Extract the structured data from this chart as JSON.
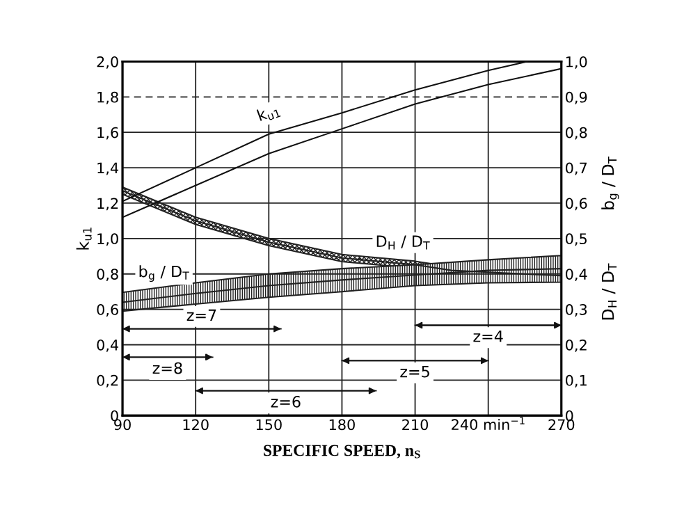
{
  "chart_data": {
    "type": "line",
    "xlabel": "SPECIFIC SPEED, n$_{S}$",
    "ylabel": "k$_{u1}$",
    "y2label": "D$_{H}$ / D$_{T}$          b$_{g}$ / D$_{T}$",
    "xlim": [
      90,
      270
    ],
    "xticks": [
      90,
      120,
      150,
      180,
      210,
      {
        "value": 240,
        "label": "240 min$^{−1}$"
      },
      270
    ],
    "ylim": [
      0,
      2.0
    ],
    "yticks": [
      0,
      {
        "value": 0.2,
        "label": "0,2"
      },
      {
        "value": 0.4,
        "label": "0,4"
      },
      {
        "value": 0.6,
        "label": "0,6"
      },
      {
        "value": 0.8,
        "label": "0,8"
      },
      {
        "value": 1.0,
        "label": "1,0"
      },
      {
        "value": 1.2,
        "label": "1,2"
      },
      {
        "value": 1.4,
        "label": "1,4"
      },
      {
        "value": 1.6,
        "label": "1,6"
      },
      {
        "value": 1.8,
        "label": "1,8"
      },
      {
        "value": 2.0,
        "label": "2,0"
      }
    ],
    "y2lim": [
      0,
      1.0
    ],
    "y2ticks": [
      0,
      {
        "value": 0.1,
        "label": "0,1"
      },
      {
        "value": 0.2,
        "label": "0,2"
      },
      {
        "value": 0.3,
        "label": "0,3"
      },
      {
        "value": 0.4,
        "label": "0,4"
      },
      {
        "value": 0.5,
        "label": "0,5"
      },
      {
        "value": 0.6,
        "label": "0,6"
      },
      {
        "value": 0.7,
        "label": "0,7"
      },
      {
        "value": 0.8,
        "label": "0,8"
      },
      {
        "value": 0.9,
        "label": "0,9"
      },
      {
        "value": 1.0,
        "label": "1,0"
      }
    ],
    "grid": true,
    "legend": false,
    "marker": "none",
    "line_style": "solid",
    "ref_lines": [
      {
        "axis": "y",
        "value": 1.8,
        "color": "#222222",
        "line_style": "dashed"
      }
    ],
    "series": [
      {
        "name": "k$_{u1}$",
        "color": "#111111",
        "x": [
          90,
          120,
          150,
          180,
          210,
          240,
          256
        ],
        "values": [
          1.21,
          1.4,
          1.59,
          1.71,
          1.84,
          1.95,
          2.0
        ]
      },
      {
        "color": "#111111",
        "x": [
          90,
          120,
          150,
          180,
          210,
          240,
          270
        ],
        "values": [
          1.12,
          1.3,
          1.48,
          1.62,
          1.76,
          1.87,
          1.96
        ]
      },
      {
        "name": "D$_{H}$ / D$_{T}$",
        "color": "#222222",
        "axis": "y2",
        "x": [
          90,
          120,
          150,
          180,
          210,
          225,
          240,
          270
        ],
        "values": [
          0.635,
          0.55,
          0.49,
          0.445,
          0.426,
          0.41,
          0.405,
          0.395
        ],
        "lower": [
          0.625,
          0.54,
          0.48,
          0.435,
          0.416,
          0.4,
          0.395,
          0.38
        ],
        "upper": [
          0.645,
          0.56,
          0.5,
          0.455,
          0.436,
          0.42,
          0.415,
          0.41
        ]
      },
      {
        "name": "b$_{g}$ / D$_{T}$",
        "color": "#222222",
        "axis": "y2",
        "x": [
          90,
          120,
          150,
          180,
          210,
          240,
          270
        ],
        "values": [
          0.32,
          0.345,
          0.367,
          0.383,
          0.397,
          0.41,
          0.415
        ],
        "lower": [
          0.295,
          0.315,
          0.334,
          0.35,
          0.367,
          0.375,
          0.377
        ],
        "upper": [
          0.348,
          0.375,
          0.4,
          0.415,
          0.426,
          0.44,
          0.452
        ]
      },
      {
        "name": "z=7",
        "color": "#111111",
        "x": [
          90,
          155
        ],
        "values": [
          0.49,
          0.49
        ]
      },
      {
        "name": "z=8",
        "color": "#111111",
        "x": [
          90,
          127
        ],
        "values": [
          0.33,
          0.33
        ]
      },
      {
        "name": "z=6",
        "color": "#111111",
        "x": [
          120,
          194
        ],
        "values": [
          0.14,
          0.14
        ]
      },
      {
        "name": "z=5",
        "color": "#111111",
        "x": [
          180,
          240
        ],
        "values": [
          0.31,
          0.31
        ]
      },
      {
        "name": "z=4",
        "color": "#111111",
        "x": [
          210,
          270
        ],
        "values": [
          0.51,
          0.51
        ]
      }
    ]
  }
}
